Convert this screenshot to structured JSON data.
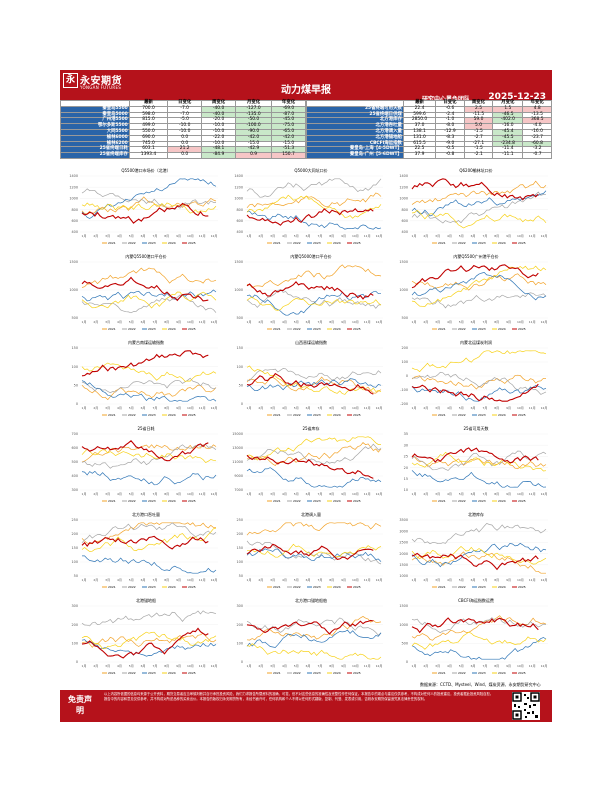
{
  "header": {
    "logo_mark": "永",
    "logo_cn": "永安期货",
    "logo_en": "YONGAN FUTURES",
    "title": "动力煤早报",
    "team": "研究中心黑色团队",
    "date": "2025-12-23"
  },
  "colors": {
    "brand": "#b5121b",
    "label_blue": "#2a64a8",
    "pos": "#f6c6c6",
    "neg": "#c9e8c9"
  },
  "left_table": {
    "headers": [
      "",
      "最新",
      "日变化",
      "周变化",
      "月变化",
      "年变化"
    ],
    "rows": [
      {
        "label": "秦皇岛5500",
        "values": [
          "700.0",
          "-7.0",
          "-40.0",
          "-127.0",
          "-69.0"
        ]
      },
      {
        "label": "秦皇岛5000",
        "values": [
          "598.0",
          "-7.0",
          "-40.0",
          "-135.0",
          "-87.0"
        ]
      },
      {
        "label": "广州港5500",
        "values": [
          "815.0",
          "-5.0",
          "-20.0",
          "-50.0",
          "-45.0"
        ]
      },
      {
        "label": "鄂尔多斯5500",
        "values": [
          "499.0",
          "-10.0",
          "-10.0",
          "-100.0",
          "-75.0"
        ]
      },
      {
        "label": "大同5500",
        "values": [
          "550.0",
          "-10.0",
          "-10.0",
          "-90.0",
          "-65.0"
        ]
      },
      {
        "label": "榆林6000",
        "values": [
          "690.0",
          "0.0",
          "-22.0",
          "-42.0",
          "-42.0"
        ]
      },
      {
        "label": "榆林6200",
        "values": [
          "745.0",
          "0.0",
          "-10.0",
          "-15.0",
          "-15.0"
        ]
      },
      {
        "label": "25省终端日耗",
        "values": [
          "603.1",
          "21.2",
          "-48.1",
          "-42.9",
          "-51.3"
        ]
      },
      {
        "label": "25省终端库存",
        "values": [
          "1393.4",
          "0.0",
          "-84.9",
          "0.9",
          "150.7"
        ]
      }
    ]
  },
  "right_table": {
    "headers": [
      "",
      "最新",
      "日变化",
      "周变化",
      "月变化",
      "年变化"
    ],
    "rows": [
      {
        "label": "25省终端可用天数",
        "values": [
          "22.4",
          "-0.6",
          "2.5",
          "1.5",
          "4.8"
        ]
      },
      {
        "label": "25省终端日供煤",
        "values": [
          "599.6",
          "-2.4",
          "-11.5",
          "-46.5",
          "-13.5"
        ]
      },
      {
        "label": "北方港库存",
        "values": [
          "2850.0",
          "-1.0",
          "59.0",
          "-402.0",
          "368.5"
        ]
      },
      {
        "label": "北方港吞吐量",
        "values": [
          "37.0",
          "-8.0",
          "5.0",
          "-16.0",
          "-4.0"
        ]
      },
      {
        "label": "北方港调入量",
        "values": [
          "138.1",
          "-12.9",
          "-1.5",
          "-45.4",
          "-16.0"
        ]
      },
      {
        "label": "北方港锚地船",
        "values": [
          "131.0",
          "-8.3",
          "-2.7",
          "-45.5",
          "-23.7"
        ]
      },
      {
        "label": "CBCFI海运指数",
        "values": [
          "615.5",
          "-9.0",
          "-27.1",
          "-234.8",
          "-60.8"
        ]
      },
      {
        "label": "秦皇岛-上海【4-5DWT】",
        "values": [
          "22.5",
          "-0.5",
          "-1.5",
          "-11.4",
          "-3.2"
        ]
      },
      {
        "label": "秦皇岛-广州【5-6DWT】",
        "values": [
          "37.9",
          "-0.8",
          "-2.1",
          "-11.1",
          "-0.7"
        ]
      }
    ]
  },
  "charts": [
    {
      "title": "Q5500港口市场价（北港）",
      "ylim": [
        400,
        1400
      ],
      "ticks": [
        "1400",
        "1200",
        "1000",
        "800",
        "600",
        "400"
      ]
    },
    {
      "title": "Q5000大同坑口价",
      "ylim": [
        400,
        1400
      ],
      "ticks": [
        "1400",
        "1200",
        "1000",
        "800",
        "600",
        "400"
      ]
    },
    {
      "title": "Q6200榆林坑口价",
      "ylim": [
        400,
        1400
      ],
      "ticks": [
        "1400",
        "1200",
        "1000",
        "800",
        "600",
        "400"
      ]
    },
    {
      "title": "内蒙Q5500港口平仓价",
      "ylim": [
        500,
        1500
      ],
      "ticks": [
        "1500",
        "1000",
        "500"
      ]
    },
    {
      "title": "内蒙Q5000港口平仓价",
      "ylim": [
        500,
        1500
      ],
      "ticks": [
        "1500",
        "1000",
        "500"
      ]
    },
    {
      "title": "内蒙Q5500广州港平仓价",
      "ylim": [
        500,
        1500
      ],
      "ticks": [
        "1500",
        "1000",
        "500"
      ]
    },
    {
      "title": "内蒙古南煤运输指数",
      "ylim": [
        0,
        150
      ],
      "ticks": [
        "150",
        "100",
        "50",
        "0"
      ]
    },
    {
      "title": "山西晋煤运输指数",
      "ylim": [
        0,
        150
      ],
      "ticks": [
        "150",
        "100",
        "50",
        "0"
      ]
    },
    {
      "title": "内蒙北运煤炭利润",
      "ylim": [
        -200,
        200
      ],
      "ticks": [
        "200",
        "100",
        "0",
        "-100",
        "-200"
      ]
    },
    {
      "title": "25省日耗",
      "ylim": [
        300,
        700
      ],
      "ticks": [
        "700",
        "600",
        "500",
        "400",
        "300"
      ]
    },
    {
      "title": "25省库存",
      "ylim": [
        7000,
        15000
      ],
      "ticks": [
        "15000",
        "13000",
        "11000",
        "9000",
        "7000"
      ]
    },
    {
      "title": "25省可用天数",
      "ylim": [
        10,
        35
      ],
      "ticks": [
        "35",
        "30",
        "25",
        "20",
        "15",
        "10"
      ]
    },
    {
      "title": "北方港口吞吐量",
      "ylim": [
        50,
        250
      ],
      "ticks": [
        "250",
        "200",
        "150",
        "100",
        "50"
      ]
    },
    {
      "title": "北港调入量",
      "ylim": [
        50,
        250
      ],
      "ticks": [
        "250",
        "200",
        "150",
        "100",
        "50"
      ]
    },
    {
      "title": "北港库存",
      "ylim": [
        1000,
        3500
      ],
      "ticks": [
        "3500",
        "3000",
        "2500",
        "2000",
        "1500",
        "1000"
      ]
    },
    {
      "title": "北港锚地船",
      "ylim": [
        0,
        300
      ],
      "ticks": [
        "300",
        "200",
        "100",
        "0"
      ]
    },
    {
      "title": "北方港口锚地船舶",
      "ylim": [
        0,
        300
      ],
      "ticks": [
        "300",
        "200",
        "100",
        "0"
      ]
    },
    {
      "title": "CBCFI海运指数运费",
      "ylim": [
        0,
        1500
      ],
      "ticks": [
        "1500",
        "1000",
        "500",
        "0"
      ]
    }
  ],
  "x_ticks": [
    "1月",
    "2月",
    "3月",
    "4月",
    "5月",
    "6月",
    "7月",
    "8月",
    "9月",
    "10月",
    "11月",
    "12月"
  ],
  "legend": [
    "2021",
    "2022",
    "2023",
    "2024",
    "2025"
  ],
  "series_colors": [
    "#f2a32a",
    "#a6a6a6",
    "#2e75b6",
    "#f7d117",
    "#c00000"
  ],
  "footer": {
    "source": "数据来源：CCTD、Mysteel、Wind、煤炭资源、永安期货研究中心",
    "disclaimer_title": "免责声明",
    "disclaimer": "以上内容所依据的信息均来源于公开资料，期货交易者应当审慎判断并自行承担投资风险，我们力求报告所载资料的准确、可靠，但不对这些信息的准确性及完整性作任何保证。本报告中的观点与建议仅供参考，不构成对任何人的投资建议，投资者据此投资风险自担。报告中的内容和意见仅供参考，并不构成对所述品种的买卖出价。本报告的版权归永安期货所有，未经书面许可，任何机构和个人不得以任何形式翻版、复制、刊登、发表或引用，否则永安期货保留追究其法律责任的权利。"
  }
}
